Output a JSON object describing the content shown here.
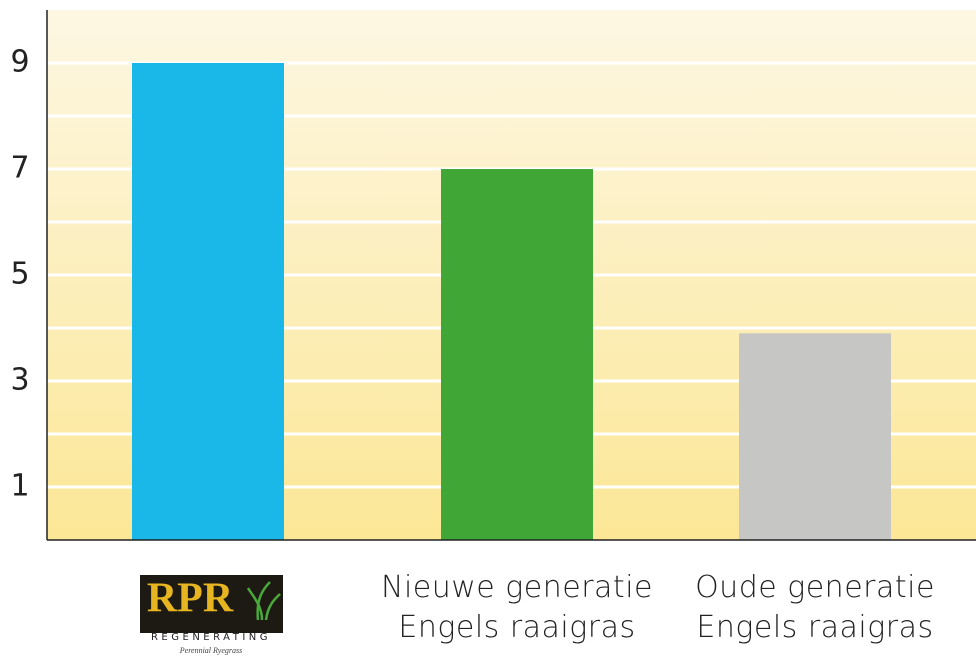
{
  "chart_data": {
    "type": "bar",
    "categories": [
      null,
      "Nieuwe generatie Engels raaigras",
      "Oude generatie Engels raaigras"
    ],
    "values": [
      9,
      7,
      3.9
    ],
    "colors": [
      "#1ab8e8",
      "#40a736",
      "#c6c6c4"
    ],
    "ylim": [
      0,
      10
    ],
    "yticks": [
      1,
      3,
      5,
      7,
      9
    ],
    "minor_yticks": [
      2,
      4,
      6,
      8
    ],
    "grid": true,
    "logo": {
      "title": "RPR",
      "subtitle": "REGENERATING",
      "tagline": "Perennial Ryegrass"
    }
  }
}
